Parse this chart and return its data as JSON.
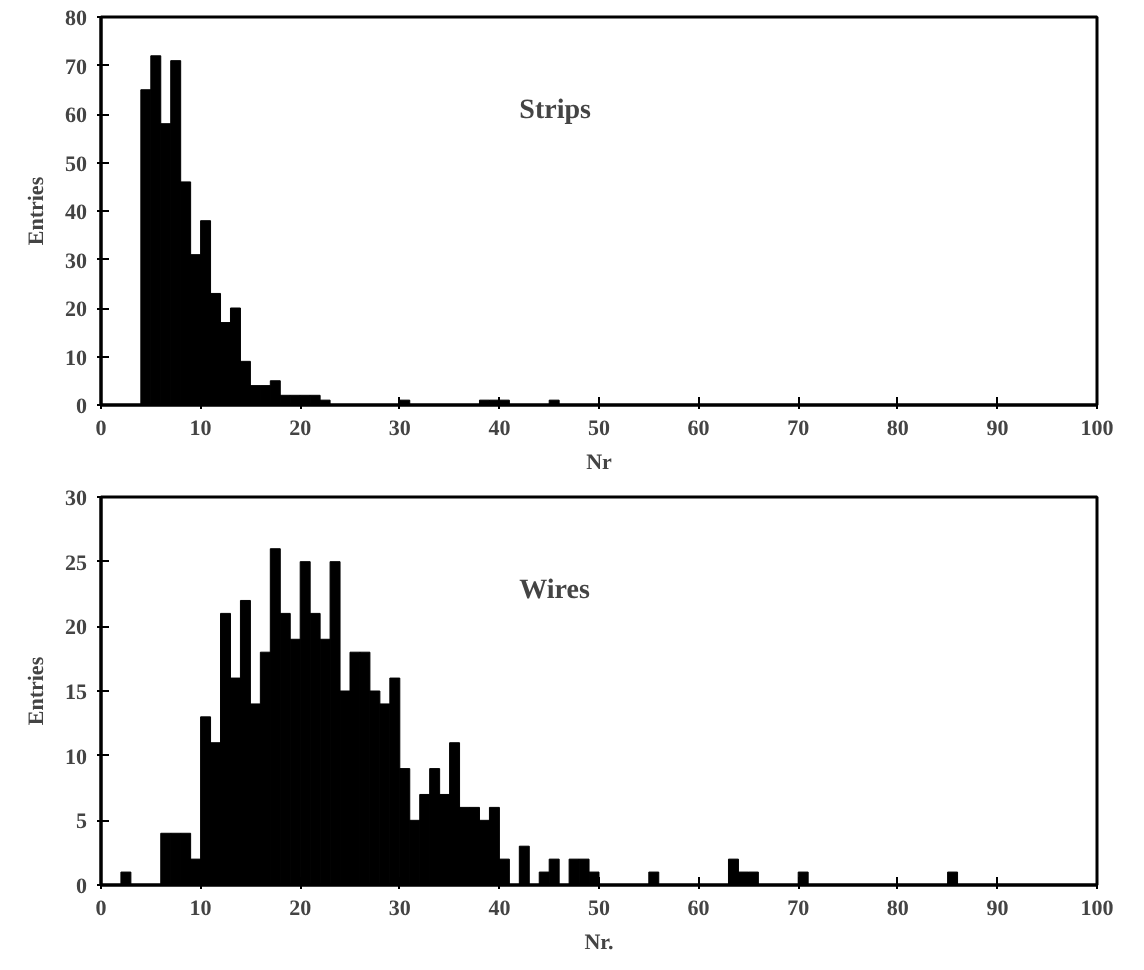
{
  "chart_data": [
    {
      "type": "histogram",
      "annotations": [
        "Strips"
      ],
      "xlabel": "Nr",
      "ylabel": "Entries",
      "color": "#000000",
      "xlim": [
        0,
        100
      ],
      "ylim": [
        0,
        80
      ],
      "xticks": [
        0,
        10,
        20,
        30,
        40,
        50,
        60,
        70,
        80,
        90,
        100
      ],
      "yticks": [
        0,
        10,
        20,
        30,
        40,
        50,
        60,
        70,
        80
      ],
      "grid": false,
      "bins": [
        0,
        1,
        2,
        3,
        4,
        5,
        6,
        7,
        8,
        9,
        10,
        11,
        12,
        13,
        14,
        15,
        16,
        17,
        18,
        19,
        20,
        21,
        22,
        23,
        24,
        25,
        26,
        27,
        28,
        29,
        30,
        31,
        32,
        33,
        34,
        35,
        36,
        37,
        38,
        39,
        40,
        41,
        42,
        43,
        44,
        45,
        46,
        47,
        48,
        49,
        50,
        51,
        52,
        53,
        54,
        55,
        56,
        57,
        58,
        59,
        60,
        61,
        62,
        63,
        64,
        65,
        66,
        67,
        68,
        69,
        70,
        71,
        72,
        73,
        74,
        75,
        76,
        77,
        78,
        79,
        80,
        81,
        82,
        83,
        84,
        85,
        86,
        87,
        88,
        89,
        90,
        91,
        92,
        93,
        94,
        95,
        96,
        97,
        98,
        99,
        100
      ],
      "values": [
        0,
        0,
        0,
        0,
        65,
        72,
        58,
        71,
        46,
        31,
        38,
        23,
        17,
        20,
        9,
        4,
        4,
        5,
        2,
        2,
        2,
        2,
        1,
        0,
        0,
        0,
        0,
        0,
        0,
        0,
        1,
        0,
        0,
        0,
        0,
        0,
        0,
        0,
        1,
        1,
        1,
        0,
        0,
        0,
        0,
        1,
        0,
        0,
        0,
        0,
        0,
        0,
        0,
        0,
        0,
        0,
        0,
        0,
        0,
        0,
        0,
        0,
        0,
        0,
        0,
        0,
        0,
        0,
        0,
        0,
        0,
        0,
        0,
        0,
        0,
        0,
        0,
        0,
        0,
        0,
        0,
        0,
        0,
        0,
        0,
        0,
        0,
        0,
        0,
        0,
        0,
        0,
        0,
        0,
        0,
        0,
        0,
        0,
        0,
        0
      ]
    },
    {
      "type": "histogram",
      "annotations": [
        "Wires"
      ],
      "xlabel": "Nr.",
      "ylabel": "Entries",
      "color": "#000000",
      "xlim": [
        0,
        100
      ],
      "ylim": [
        0,
        30
      ],
      "xticks": [
        0,
        10,
        20,
        30,
        40,
        50,
        60,
        70,
        80,
        90,
        100
      ],
      "yticks": [
        0,
        5,
        10,
        15,
        20,
        25,
        30
      ],
      "grid": false,
      "bins": [
        0,
        1,
        2,
        3,
        4,
        5,
        6,
        7,
        8,
        9,
        10,
        11,
        12,
        13,
        14,
        15,
        16,
        17,
        18,
        19,
        20,
        21,
        22,
        23,
        24,
        25,
        26,
        27,
        28,
        29,
        30,
        31,
        32,
        33,
        34,
        35,
        36,
        37,
        38,
        39,
        40,
        41,
        42,
        43,
        44,
        45,
        46,
        47,
        48,
        49,
        50,
        51,
        52,
        53,
        54,
        55,
        56,
        57,
        58,
        59,
        60,
        61,
        62,
        63,
        64,
        65,
        66,
        67,
        68,
        69,
        70,
        71,
        72,
        73,
        74,
        75,
        76,
        77,
        78,
        79,
        80,
        81,
        82,
        83,
        84,
        85,
        86,
        87,
        88,
        89,
        90,
        91,
        92,
        93,
        94,
        95,
        96,
        97,
        98,
        99,
        100
      ],
      "values": [
        0,
        0,
        1,
        0,
        0,
        0,
        4,
        4,
        4,
        2,
        13,
        11,
        21,
        16,
        22,
        14,
        18,
        26,
        21,
        19,
        25,
        21,
        19,
        25,
        15,
        18,
        18,
        15,
        14,
        16,
        9,
        5,
        7,
        9,
        7,
        11,
        6,
        6,
        5,
        6,
        2,
        0,
        3,
        0,
        1,
        2,
        0,
        2,
        2,
        1,
        0,
        0,
        0,
        0,
        0,
        1,
        0,
        0,
        0,
        0,
        0,
        0,
        0,
        2,
        1,
        1,
        0,
        0,
        0,
        0,
        1,
        0,
        0,
        0,
        0,
        0,
        0,
        0,
        0,
        0,
        0,
        0,
        0,
        0,
        0,
        1,
        0,
        0,
        0,
        0,
        0,
        0,
        0,
        0,
        0,
        0,
        0,
        0,
        0,
        0
      ]
    }
  ]
}
